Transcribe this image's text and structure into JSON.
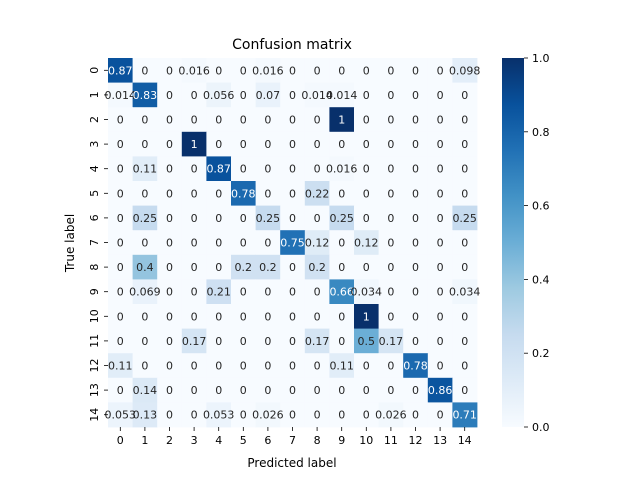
{
  "chart_data": {
    "type": "heatmap",
    "title": "Confusion matrix",
    "xlabel": "Predicted label",
    "ylabel": "True label",
    "x_categories": [
      "0",
      "1",
      "2",
      "3",
      "4",
      "5",
      "6",
      "7",
      "8",
      "9",
      "10",
      "11",
      "12",
      "13",
      "14"
    ],
    "y_categories": [
      "0",
      "1",
      "2",
      "3",
      "4",
      "5",
      "6",
      "7",
      "8",
      "9",
      "10",
      "11",
      "12",
      "13",
      "14"
    ],
    "values": [
      [
        0.87,
        0,
        0,
        0.016,
        0,
        0,
        0.016,
        0,
        0,
        0,
        0,
        0,
        0,
        0,
        0.098
      ],
      [
        0.014,
        0.83,
        0,
        0,
        0.056,
        0,
        0.07,
        0,
        0.014,
        0.014,
        0,
        0,
        0,
        0,
        0
      ],
      [
        0,
        0,
        0,
        0,
        0,
        0,
        0,
        0,
        0,
        1,
        0,
        0,
        0,
        0,
        0
      ],
      [
        0,
        0,
        0,
        1,
        0,
        0,
        0,
        0,
        0,
        0,
        0,
        0,
        0,
        0,
        0
      ],
      [
        0,
        0.11,
        0,
        0,
        0.87,
        0,
        0,
        0,
        0,
        0.016,
        0,
        0,
        0,
        0,
        0
      ],
      [
        0,
        0,
        0,
        0,
        0,
        0.78,
        0,
        0,
        0.22,
        0,
        0,
        0,
        0,
        0,
        0
      ],
      [
        0,
        0.25,
        0,
        0,
        0,
        0,
        0.25,
        0,
        0,
        0.25,
        0,
        0,
        0,
        0,
        0.25
      ],
      [
        0,
        0,
        0,
        0,
        0,
        0,
        0,
        0.75,
        0.12,
        0,
        0.12,
        0,
        0,
        0,
        0
      ],
      [
        0,
        0.4,
        0,
        0,
        0,
        0.2,
        0.2,
        0,
        0.2,
        0,
        0,
        0,
        0,
        0,
        0
      ],
      [
        0,
        0.069,
        0,
        0,
        0.21,
        0,
        0,
        0,
        0,
        0.66,
        0.034,
        0,
        0,
        0,
        0.034
      ],
      [
        0,
        0,
        0,
        0,
        0,
        0,
        0,
        0,
        0,
        0,
        1,
        0,
        0,
        0,
        0
      ],
      [
        0,
        0,
        0,
        0.17,
        0,
        0,
        0,
        0,
        0.17,
        0,
        0.5,
        0.17,
        0,
        0,
        0
      ],
      [
        0.11,
        0,
        0,
        0,
        0,
        0,
        0,
        0,
        0,
        0.11,
        0,
        0,
        0.78,
        0,
        0
      ],
      [
        0,
        0.14,
        0,
        0,
        0,
        0,
        0,
        0,
        0,
        0,
        0,
        0,
        0,
        0.86,
        0
      ],
      [
        0.053,
        0.13,
        0,
        0,
        0.053,
        0,
        0.026,
        0,
        0,
        0,
        0,
        0.026,
        0,
        0,
        0.71
      ]
    ],
    "colorbar": {
      "range": [
        0,
        1
      ],
      "ticks": [
        "0.0",
        "0.2",
        "0.4",
        "0.6",
        "0.8",
        "1.0"
      ],
      "colormap": "Blues",
      "low_color": "#f7fbff",
      "high_color": "#08306b"
    }
  }
}
